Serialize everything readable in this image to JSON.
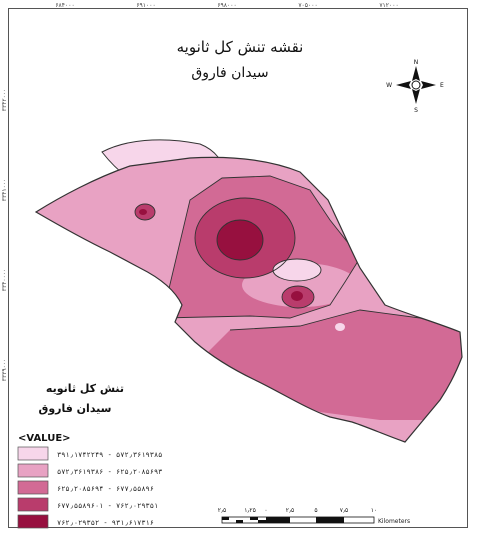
{
  "map": {
    "title": "نقشه تنش کل ثانویه",
    "subtitle": "سیدان فاروق"
  },
  "grid": {
    "top_ticks": [
      "۶۸۴۰۰۰",
      "۶۹۱۰۰۰",
      "۶۹۸۰۰۰",
      "۷۰۵۰۰۰",
      "۷۱۲۰۰۰"
    ],
    "left_ticks": [
      "۳۳۴۲۰۰۰",
      "۳۳۴۱۰۰۰",
      "۳۳۴۰۰۰۰",
      "۳۳۳۹۰۰۰"
    ]
  },
  "north_arrow": {
    "n": "N",
    "s": "S",
    "e": "E",
    "w": "W"
  },
  "legend": {
    "title_line1": "تنش کل ثانویه",
    "title_line2": "سیدان فاروق",
    "value_header": "<VALUE>",
    "classes": [
      {
        "label": "۳۹۱٫۱۷۴۲۲۴۹ - ۵۷۲٫۳۶۱۹۳۸۵",
        "color": "#f7d6ea"
      },
      {
        "label": "۵۷۲٫۳۶۱۹۳۸۶ - ۶۲۵٫۲۰۸۵۶۹۳",
        "color": "#e8a2c3"
      },
      {
        "label": "۶۲۵٫۲۰۸۵۶۹۴ - ۶۷۷٫۵۵۸۹۶",
        "color": "#d26a95"
      },
      {
        "label": "۶۷۷٫۵۵۸۹۶۰۱ - ۷۶۲٫۰۲۹۳۵۱",
        "color": "#b93c6c"
      },
      {
        "label": "۷۶۲٫۰۲۹۳۵۲ - ۹۳۱٫۶۱۷۳۱۶",
        "color": "#97103f"
      }
    ]
  },
  "scalebar": {
    "labels": [
      "۲٫۵",
      "۱٫۲۵",
      "۰",
      "۲٫۵",
      "۵",
      "۷٫۵",
      "۱۰"
    ],
    "unit": "Kilometers"
  },
  "colors": {
    "background": "#ffffff",
    "frame": "#555555",
    "outline": "#333333"
  }
}
